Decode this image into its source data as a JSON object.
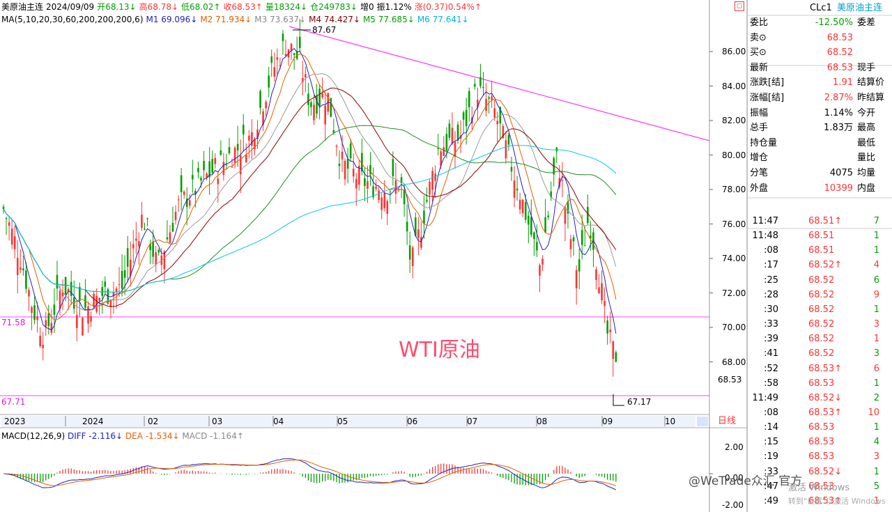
{
  "header": {
    "symbol": "美原油主连",
    "date": "2024/09/09",
    "open": "开68.13↓",
    "high": "高68.78↓",
    "low": "低68.02↑",
    "close": "收68.53↑",
    "volume": "量18324↓",
    "oi": "仓249783↓",
    "oi_change": "增0",
    "amplitude": "振1.12%",
    "change": "涨(0.37)0.54%↑"
  },
  "ma_legend": {
    "label": "MA(5,10,20,30,60,200,200,200,6)",
    "m1": "M1 69.096↓",
    "m2": "M2 71.934↓",
    "m3": "M3 73.637↓",
    "m4": "M4 74.427↓",
    "m5": "M5 77.685↓",
    "m6": "M6 77.641↓"
  },
  "chart": {
    "watermark": "WTI原油",
    "peak_label": "87.67",
    "low_label": "67.17",
    "level_high": "71.58",
    "level_low": "67.71",
    "price_ticks": [
      "86.00",
      "84.00",
      "82.00",
      "80.00",
      "78.00",
      "76.00",
      "74.00",
      "72.00",
      "70.00",
      "68.00"
    ],
    "last_price_tag": "68.53",
    "time_labels": [
      "2023",
      "2024",
      "02",
      "03",
      "04",
      "05",
      "06",
      "07",
      "08",
      "09",
      "10"
    ],
    "period_button": "日线"
  },
  "macd_legend": {
    "label": "MACD(12,26,9)",
    "diff": "DIFF -2.116↓",
    "dea": "DEA -1.534↓",
    "macd": "MACD -1.164↑"
  },
  "macd_ticks": [
    "2.00",
    "0.00",
    "-2.00"
  ],
  "quote": {
    "code": "CLc1",
    "name": "美原油主连",
    "rows": [
      {
        "k": "委比",
        "v": "-12.50%",
        "k2": "委差",
        "c": "grn"
      },
      {
        "k": "卖⊙",
        "v": "68.53",
        "k2": "",
        "c": "red"
      },
      {
        "k": "买⊙",
        "v": "68.52",
        "k2": "",
        "c": "red"
      },
      {
        "k": "最新",
        "v": "68.53",
        "k2": "现手",
        "c": "red"
      },
      {
        "k": "涨跌[结]",
        "v": "1.91",
        "k2": "结算价",
        "c": "red"
      },
      {
        "k": "涨幅[结]",
        "v": "2.87%",
        "k2": "昨结算",
        "c": "red"
      },
      {
        "k": "振幅",
        "v": "1.14%",
        "k2": "今开",
        "c": ""
      },
      {
        "k": "总手",
        "v": "1.83万",
        "k2": "最高",
        "c": ""
      },
      {
        "k": "持仓量",
        "v": "",
        "k2": "最低",
        "c": ""
      },
      {
        "k": "增仓",
        "v": "",
        "k2": "量比",
        "c": ""
      },
      {
        "k": "分笔",
        "v": "4075",
        "k2": "均量",
        "c": ""
      },
      {
        "k": "外盘",
        "v": "10399",
        "k2": "内盘",
        "c": "red"
      }
    ]
  },
  "ticks": [
    {
      "t": "11:47",
      "p": "68.51↑",
      "v": "7",
      "pc": "red",
      "vc": "grn"
    },
    {
      "t": "11:48",
      "p": "68.51",
      "v": "1",
      "pc": "red",
      "vc": "grn"
    },
    {
      "t": ":08",
      "p": "68.51",
      "v": "1",
      "pc": "red",
      "vc": "grn"
    },
    {
      "t": ":17",
      "p": "68.52↑",
      "v": "4",
      "pc": "red",
      "vc": "red"
    },
    {
      "t": ":25",
      "p": "68.52",
      "v": "6",
      "pc": "red",
      "vc": "grn"
    },
    {
      "t": ":28",
      "p": "68.52",
      "v": "9",
      "pc": "red",
      "vc": "red"
    },
    {
      "t": ":30",
      "p": "68.52",
      "v": "1",
      "pc": "red",
      "vc": "grn"
    },
    {
      "t": ":33",
      "p": "68.52",
      "v": "3",
      "pc": "red",
      "vc": "red"
    },
    {
      "t": ":39",
      "p": "68.52",
      "v": "1",
      "pc": "red",
      "vc": "red"
    },
    {
      "t": ":41",
      "p": "68.52",
      "v": "3",
      "pc": "red",
      "vc": "grn"
    },
    {
      "t": ":52",
      "p": "68.53↑",
      "v": "6",
      "pc": "red",
      "vc": "red"
    },
    {
      "t": ":58",
      "p": "68.53",
      "v": "1",
      "pc": "red",
      "vc": "grn"
    },
    {
      "t": "11:49",
      "p": "68.52↓",
      "v": "2",
      "pc": "red",
      "vc": "grn"
    },
    {
      "t": ":08",
      "p": "68.53↑",
      "v": "10",
      "pc": "red",
      "vc": "red"
    },
    {
      "t": ":14",
      "p": "68.53",
      "v": "1",
      "pc": "red",
      "vc": "grn"
    },
    {
      "t": ":15",
      "p": "68.53",
      "v": "4",
      "pc": "red",
      "vc": "grn"
    },
    {
      "t": ":19",
      "p": "68.53",
      "v": "3",
      "pc": "red",
      "vc": "red"
    },
    {
      "t": ":33",
      "p": "68.52↓",
      "v": "1",
      "pc": "red",
      "vc": "grn"
    },
    {
      "t": ":47",
      "p": "68.53",
      "v": "5",
      "pc": "red",
      "vc": "grn"
    },
    {
      "t": ":49",
      "p": "68.53↑",
      "v": "1",
      "pc": "red",
      "vc": "red"
    }
  ],
  "overlay": {
    "brand": "@WeTrade众汇 官方",
    "win1": "激活 Windows",
    "win2": "转到\"设置\"以激活 Windows"
  },
  "colors": {
    "up": "#ff3333",
    "down": "#00a000",
    "trendline": "#ff40ff",
    "ma1": "#2020c0",
    "ma2": "#e06000",
    "ma3": "#999999",
    "ma4": "#8b0000",
    "ma5": "#228b22",
    "ma6": "#00c8e0"
  },
  "icons": {
    "restore": "window-restore-icon",
    "scroll": "scroll-right-icon"
  }
}
